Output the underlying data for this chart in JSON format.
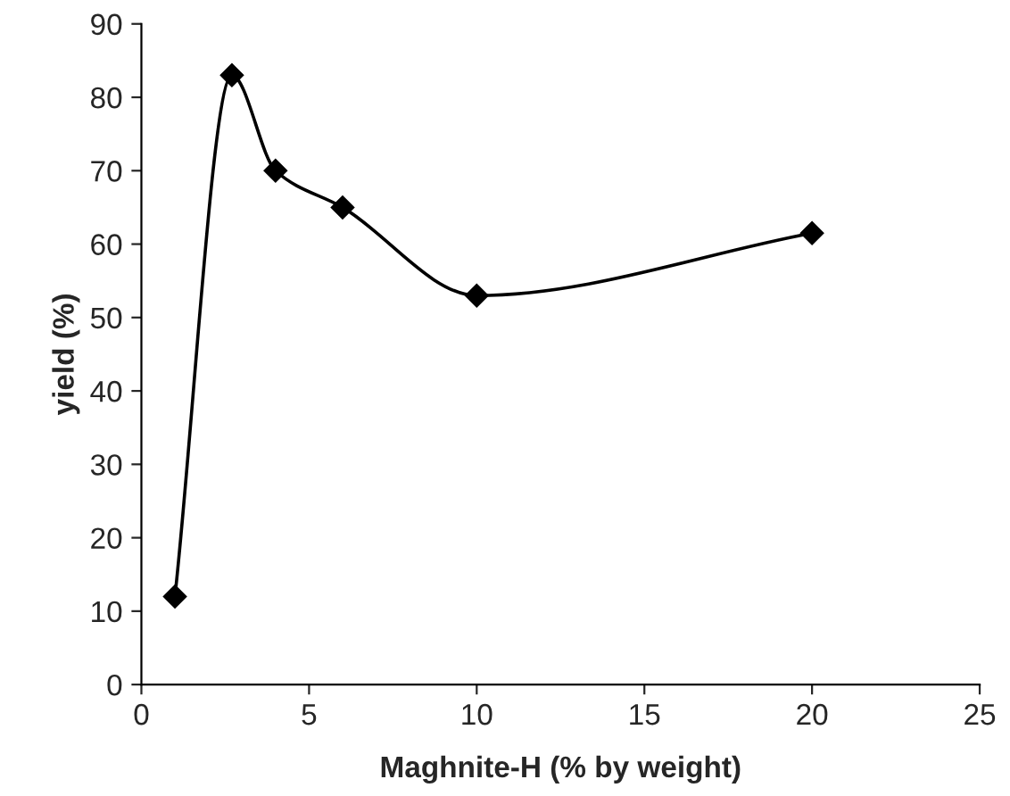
{
  "chart_data": {
    "type": "line",
    "xlabel": "Maghnite-H (% by weight)",
    "ylabel": "yield (%)",
    "x": [
      1,
      2.7,
      4,
      6,
      10,
      20
    ],
    "series": [
      {
        "color": "#000000",
        "values": [
          12,
          83,
          70,
          65,
          53,
          61.5
        ]
      }
    ],
    "xlim": [
      0,
      25
    ],
    "xticks": [
      0,
      5,
      10,
      15,
      20,
      25
    ],
    "ylim": [
      0,
      90
    ],
    "yticks": [
      0,
      10,
      20,
      30,
      40,
      50,
      60,
      70,
      80,
      90
    ],
    "grid": false,
    "marker": "diamond",
    "line_style": "solid"
  }
}
